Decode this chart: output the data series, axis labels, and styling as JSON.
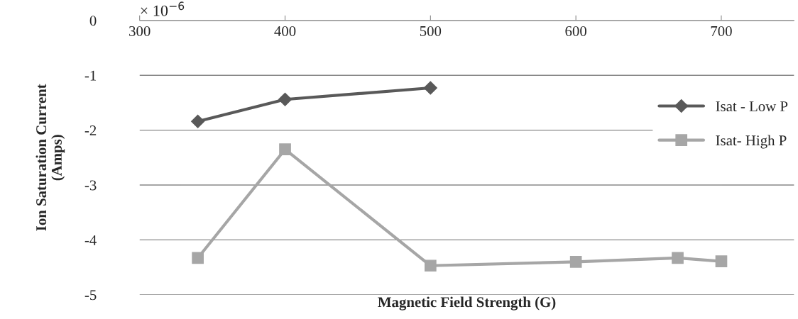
{
  "chart_data": {
    "type": "line",
    "xlabel": "Magnetic Field Strength (G)",
    "ylabel": "Ion Saturation Current\n(Amps)",
    "annotations": [
      "× 10$^{−6}$"
    ],
    "series": [
      {
        "name": "Isat - Low P",
        "color": "#595959",
        "marker": "diamond",
        "x": [
          340,
          400,
          500
        ],
        "values": [
          -1.84,
          -1.44,
          -1.23
        ]
      },
      {
        "name": "Isat- High P",
        "color": "#a6a6a6",
        "marker": "square",
        "x": [
          340,
          400,
          500,
          600,
          670,
          700
        ],
        "values": [
          -4.33,
          -2.35,
          -4.47,
          -4.4,
          -4.33,
          -4.39
        ]
      }
    ],
    "xlim": [
      300,
      750
    ],
    "xticks": [
      300,
      400,
      500,
      600,
      700
    ],
    "ylim": [
      -5,
      0
    ],
    "yticks": [
      0,
      -1,
      -2,
      -3,
      -4,
      -5
    ],
    "grid": "y",
    "legend": "right",
    "line_style": "solid"
  }
}
